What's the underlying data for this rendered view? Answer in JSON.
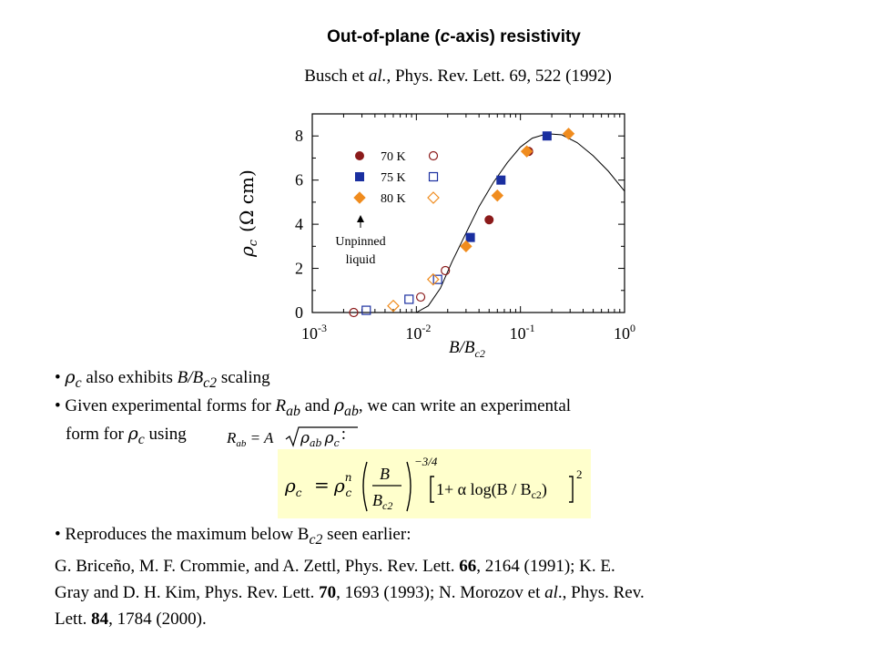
{
  "title": {
    "part1": "Out-of-plane (",
    "part_c": "c",
    "part2": "-axis) resistivity"
  },
  "citation": {
    "author": "Busch et ",
    "etal": "al.",
    "journal": ", Phys. Rev. Lett. 69, 522 (1992)"
  },
  "chart_data": {
    "type": "scatter",
    "x_scale": "log",
    "xlim": [
      0.001,
      1
    ],
    "ylim": [
      0,
      9
    ],
    "x_tick_labels": [
      "10-3",
      "10-2",
      "10-1",
      "100"
    ],
    "y_tick_labels": [
      "0",
      "2",
      "4",
      "6",
      "8"
    ],
    "xlabel": "B/Bc2",
    "ylabel": "ρc (Ω cm)",
    "legend": [
      "70 K",
      "75 K",
      "80 K"
    ],
    "legend_position": "top-left",
    "annotation": [
      "Unpinned",
      "liquid"
    ],
    "colors": {
      "70 K": "#8b1a1a",
      "75 K": "#1a2fa0",
      "80 K": "#f08c1e"
    },
    "series": [
      {
        "name": "70 K",
        "marker": "circle",
        "filled_x": [
          0.05,
          0.12
        ],
        "filled_y": [
          4.2,
          7.3
        ],
        "open_x": [
          0.0025,
          0.011,
          0.019
        ],
        "open_y": [
          0.0,
          0.7,
          1.9
        ]
      },
      {
        "name": "75 K",
        "marker": "square",
        "filled_x": [
          0.033,
          0.065,
          0.18
        ],
        "filled_y": [
          3.4,
          6.0,
          8.0
        ],
        "open_x": [
          0.0033,
          0.0085,
          0.016
        ],
        "open_y": [
          0.1,
          0.6,
          1.5
        ]
      },
      {
        "name": "80 K",
        "marker": "diamond",
        "filled_x": [
          0.03,
          0.06,
          0.115,
          0.29
        ],
        "filled_y": [
          3.0,
          5.3,
          7.3,
          8.1
        ],
        "open_x": [
          0.006,
          0.0145
        ],
        "open_y": [
          0.3,
          1.5
        ]
      }
    ],
    "fit_curve": {
      "x": [
        0.01,
        0.013,
        0.017,
        0.022,
        0.03,
        0.04,
        0.055,
        0.075,
        0.1,
        0.13,
        0.18,
        0.25,
        0.35,
        0.5,
        0.7,
        1.0
      ],
      "y": [
        0.0,
        0.3,
        1.1,
        2.3,
        3.6,
        4.8,
        5.9,
        6.8,
        7.5,
        7.9,
        8.1,
        8.05,
        7.7,
        7.1,
        6.4,
        5.5
      ]
    }
  },
  "bullets": {
    "b1": {
      "bullet": "• ",
      "rho": "ρ",
      "c": "c",
      "mid": " also exhibits ",
      "B": "B/B",
      "c2": "c2",
      "end": " scaling"
    },
    "b2": {
      "bullet": "• ",
      "a": "Given experimental forms for ",
      "R": "R",
      "ab": "ab",
      "b": " and ",
      "rho": "ρ",
      "ab2": "ab",
      "c": ", we can write an experimental"
    },
    "b3": {
      "a": "form for ",
      "rho": "ρ",
      "c": "c",
      "b": " using",
      "colon": ":"
    }
  },
  "formula_inline": {
    "R": "R",
    "ab": "ab",
    "eq": " = A",
    "rho1": "ρ",
    "ab2": "ab",
    "rho2": "ρ",
    "c": "c"
  },
  "formula_main": {
    "lhs_rho": "ρ",
    "lhs_c": "c",
    "eq": "=",
    "rho": "ρ",
    "n": "n",
    "c": "c",
    "num": "B",
    "den_B": "B",
    "den_sub": "c2",
    "exp": "−3/4",
    "bracket_text": "1+ α log(B / B",
    "bracket_sub": "c2",
    "bracket_close": ")",
    "sq": "2"
  },
  "refs": {
    "r1": {
      "bullet": "• ",
      "text": "Reproduces the maximum below B",
      "sub": "c2",
      "end": " seen earlier:"
    },
    "r2": {
      "a": "G. Briceño, M. F. Crommie, and A. Zettl, Phys. Rev. Lett. ",
      "v1": "66",
      "b": ", 2164 (1991); K. E."
    },
    "r3": {
      "a": "Gray and D. H. Kim, Phys. Rev. Lett. ",
      "v2": "70",
      "b": ", 1693 (1993); N. Morozov et ",
      "al": "al",
      "c": "., Phys. Rev."
    },
    "r4": {
      "a": "Lett. ",
      "v3": "84",
      "b": ", 1784 (2000)."
    }
  }
}
